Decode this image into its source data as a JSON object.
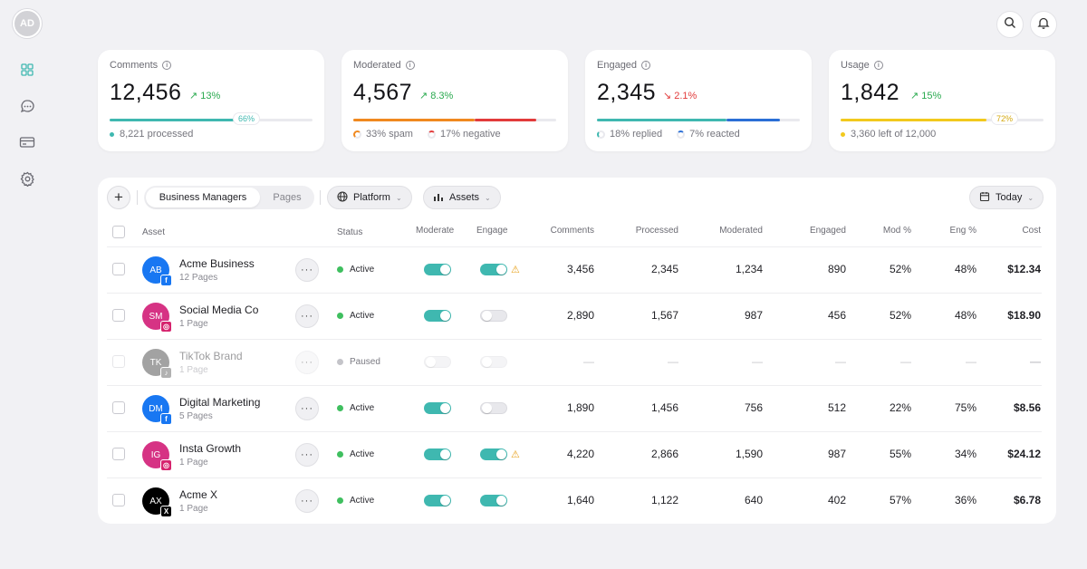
{
  "sidebar": {
    "avatar_initials": "AD",
    "items": [
      {
        "name": "dashboard-icon",
        "active": true
      },
      {
        "name": "chat-icon",
        "active": false
      },
      {
        "name": "card-icon",
        "active": false
      },
      {
        "name": "settings-icon",
        "active": false
      }
    ]
  },
  "header": {
    "icons": [
      "search-icon",
      "bell-icon"
    ]
  },
  "stats": [
    {
      "title": "Comments",
      "value": "12,456",
      "change": "13%",
      "direction": "up",
      "progress_pct": 66,
      "badge": "66%",
      "bar_color": "#3fb8b0",
      "footer": "8,221 processed"
    },
    {
      "title": "Moderated",
      "value": "4,567",
      "change": "8.3%",
      "direction": "up",
      "footer_items": [
        "33% spam",
        "17% negative"
      ],
      "segments": [
        {
          "color": "#f0891f",
          "pct": 60
        },
        {
          "color": "#e23b3b",
          "pct": 30
        }
      ]
    },
    {
      "title": "Engaged",
      "value": "2,345",
      "change": "2.1%",
      "direction": "down",
      "footer_items": [
        "18% replied",
        "7% reacted"
      ],
      "segments": [
        {
          "color": "#3fb8b0",
          "pct": 64
        },
        {
          "color": "#2b6fd6",
          "pct": 26
        }
      ]
    },
    {
      "title": "Usage",
      "value": "1,842",
      "change": "15%",
      "direction": "up",
      "progress_pct": 72,
      "badge": "72%",
      "bar_color": "#f2c91d",
      "footer": "3,360 left of 12,000"
    }
  ],
  "toolbar": {
    "tabs": [
      "Business Managers",
      "Pages"
    ],
    "active_tab": "Business Managers",
    "platform_label": "Platform",
    "assets_label": "Assets",
    "date_label": "Today"
  },
  "table": {
    "columns": [
      "Asset",
      "Status",
      "Moderate",
      "Engage",
      "Comments",
      "Processed",
      "Moderated",
      "Engaged",
      "Mod %",
      "Eng %",
      "Cost"
    ],
    "rows": [
      {
        "initials": "AB",
        "name": "Acme Business",
        "sub": "12 Pages",
        "platform": "facebook",
        "avatar_color": "#1877f2",
        "status": "Active",
        "moderate": true,
        "engage": true,
        "warn": true,
        "comments": "3,456",
        "processed": "2,345",
        "moderated": "1,234",
        "engaged": "890",
        "mod_pct": "52%",
        "eng_pct": "48%",
        "cost": "$12.34"
      },
      {
        "initials": "SM",
        "name": "Social Media Co",
        "sub": "1 Page",
        "platform": "instagram",
        "avatar_color": "#d63384",
        "status": "Active",
        "moderate": true,
        "engage": false,
        "warn": false,
        "comments": "2,890",
        "processed": "1,567",
        "moderated": "987",
        "engaged": "456",
        "mod_pct": "52%",
        "eng_pct": "48%",
        "cost": "$18.90"
      },
      {
        "initials": "TK",
        "name": "TikTok Brand",
        "sub": "1 Page",
        "platform": "tiktok",
        "avatar_color": "#333333",
        "status": "Paused",
        "moderate": false,
        "engage": false,
        "warn": false,
        "comments": "—",
        "processed": "—",
        "moderated": "—",
        "engaged": "—",
        "mod_pct": "—",
        "eng_pct": "—",
        "cost": "—"
      },
      {
        "initials": "DM",
        "name": "Digital Marketing",
        "sub": "5 Pages",
        "platform": "facebook",
        "avatar_color": "#1877f2",
        "status": "Active",
        "moderate": true,
        "engage": false,
        "warn": false,
        "comments": "1,890",
        "processed": "1,456",
        "moderated": "756",
        "engaged": "512",
        "mod_pct": "22%",
        "eng_pct": "75%",
        "cost": "$8.56"
      },
      {
        "initials": "IG",
        "name": "Insta Growth",
        "sub": "1 Page",
        "platform": "instagram",
        "avatar_color": "#d63384",
        "status": "Active",
        "moderate": true,
        "engage": true,
        "warn": true,
        "comments": "4,220",
        "processed": "2,866",
        "moderated": "1,590",
        "engaged": "987",
        "mod_pct": "55%",
        "eng_pct": "34%",
        "cost": "$24.12"
      },
      {
        "initials": "AX",
        "name": "Acme X",
        "sub": "1 Page",
        "platform": "x",
        "avatar_color": "#000000",
        "status": "Active",
        "moderate": true,
        "engage": true,
        "warn": false,
        "comments": "1,640",
        "processed": "1,122",
        "moderated": "640",
        "engaged": "402",
        "mod_pct": "57%",
        "eng_pct": "36%",
        "cost": "$6.78"
      }
    ]
  }
}
